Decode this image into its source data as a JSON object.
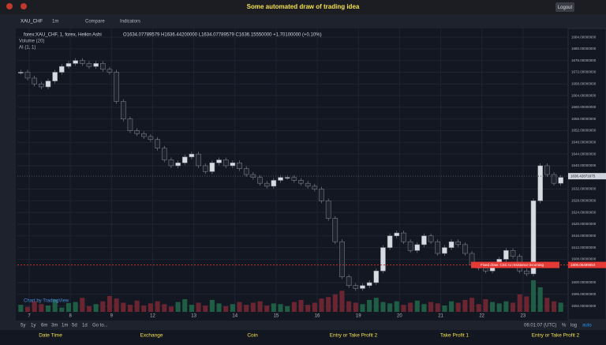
{
  "header": {
    "title": "Some automated draw of trading idea",
    "logout": "Logout"
  },
  "toolbar": {
    "symbol": "XAU_CHF",
    "interval": "1m",
    "compare": "Compare",
    "indicators": "Indicators"
  },
  "legend": {
    "main": "forex:XAU_CHF, 1, forex, Heikin Ashi",
    "ohlc": "O1634.07789579  H1636.44200000  L1634.07789579  C1636.15550000  +1.70100000 (+0.10%)",
    "volume": "Volume (20)",
    "ai": "AI (1, 1)"
  },
  "chart_data": {
    "type": "candlestick",
    "closes": [
      1672,
      1670,
      1668,
      1667,
      1669,
      1672,
      1674,
      1675,
      1676,
      1675,
      1674,
      1675,
      1673,
      1672,
      1662,
      1656,
      1652,
      1651,
      1650,
      1649,
      1646,
      1642,
      1640,
      1641,
      1643,
      1644,
      1640,
      1638,
      1641,
      1642,
      1640,
      1641,
      1639,
      1637,
      1636,
      1634,
      1633,
      1635,
      1636,
      1636,
      1635,
      1634,
      1633,
      1632,
      1628,
      1622,
      1614,
      1602,
      1599,
      1598,
      1599,
      1600,
      1604,
      1612,
      1616,
      1617,
      1614,
      1611,
      1613,
      1616,
      1614,
      1610,
      1612,
      1614,
      1613,
      1610,
      1606,
      1605,
      1604,
      1606,
      1608,
      1611,
      1609,
      1604,
      1603,
      1628,
      1640,
      1637,
      1634,
      1636
    ],
    "volumes": [
      20,
      14,
      30,
      22,
      18,
      35,
      12,
      25,
      28,
      40,
      16,
      22,
      30,
      45,
      38,
      26,
      20,
      32,
      18,
      24,
      30,
      22,
      15,
      28,
      36,
      20,
      26,
      18,
      34,
      24,
      16,
      22,
      28,
      20,
      26,
      30,
      18,
      24,
      22,
      16,
      28,
      34,
      20,
      26,
      38,
      42,
      50,
      60,
      30,
      26,
      22,
      34,
      40,
      28,
      24,
      30,
      20,
      26,
      32,
      22,
      28,
      24,
      18,
      30,
      26,
      34,
      40,
      22,
      36,
      28,
      24,
      30,
      26,
      50,
      44,
      90,
      70,
      40,
      30,
      26
    ],
    "time_labels": [
      "7",
      "8",
      "9",
      "12",
      "13",
      "14",
      "15",
      "16",
      "19",
      "20",
      "21",
      "22",
      "23"
    ],
    "ylim": [
      1590,
      1687
    ],
    "yticks": [
      {
        "value": 1684,
        "label": "1684.00000000"
      },
      {
        "value": 1680,
        "label": "1680.00000000"
      },
      {
        "value": 1676,
        "label": "1676.00000000"
      },
      {
        "value": 1672,
        "label": "1672.00000000"
      },
      {
        "value": 1668,
        "label": "1668.00000000"
      },
      {
        "value": 1664,
        "label": "1664.00000000"
      },
      {
        "value": 1660,
        "label": "1660.00000000"
      },
      {
        "value": 1656,
        "label": "1656.00000000"
      },
      {
        "value": 1652,
        "label": "1652.00000000"
      },
      {
        "value": 1648,
        "label": "1648.00000000"
      },
      {
        "value": 1644,
        "label": "1644.00000000"
      },
      {
        "value": 1640,
        "label": "1640.00000000"
      },
      {
        "value": 1632,
        "label": "1632.00000000"
      },
      {
        "value": 1628,
        "label": "1628.00000000"
      },
      {
        "value": 1624,
        "label": "1624.00000000"
      },
      {
        "value": 1620,
        "label": "1620.00000000"
      },
      {
        "value": 1616,
        "label": "1616.00000000"
      },
      {
        "value": 1612,
        "label": "1612.00000000"
      },
      {
        "value": 1608,
        "label": "1608.00000000"
      },
      {
        "value": 1600,
        "label": "1600.00000000"
      },
      {
        "value": 1596,
        "label": "1596.00000000"
      },
      {
        "value": 1592,
        "label": "1592.00000000"
      }
    ],
    "last_price": {
      "value": 1636.42871675,
      "label": "1636.42871675"
    },
    "marker_price": {
      "value": 1606.05489653,
      "label": "1606.05489653"
    },
    "annotation": "Fixed draw: CSC to resistance incoming",
    "up_color": "#d8dbe2",
    "down_color": "#1e222d",
    "grid": true
  },
  "watermark": "Chart by TradingView",
  "range_buttons": [
    "5y",
    "1y",
    "6m",
    "3m",
    "1m",
    "5d",
    "1d",
    "Go to..."
  ],
  "status": {
    "time": "06:01:07 (UTC)",
    "percent": "%",
    "log": "log",
    "auto": "auto"
  },
  "footer": [
    "Date Time",
    "Exchange",
    "Coin",
    "Entry or Take Profit 2",
    "Take Profit 1",
    "Entry or Take Profit 2"
  ]
}
